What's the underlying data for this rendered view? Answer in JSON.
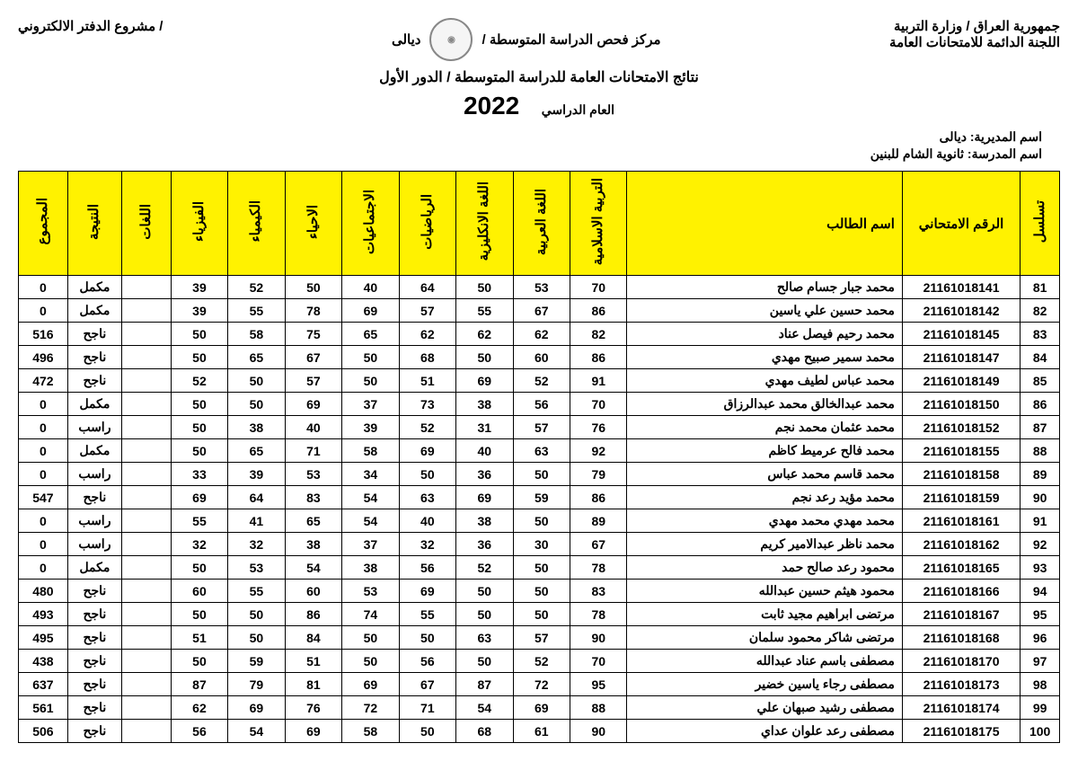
{
  "header": {
    "right1": "جمهورية العراق / وزارة التربية",
    "right2": "اللجنة الدائمة للامتحانات العامة",
    "center_label": "مركز فحص الدراسة المتوسطة  /",
    "center_gov": "ديالى",
    "left": "/ مشروع الدفتر الالكتروني",
    "title": "نتائج الامتحانات العامة للدراسة المتوسطة / الدور الأول",
    "year_label": "العام الدراسي",
    "year": "2022",
    "dir_label": "اسم المديرية:",
    "dir_value": "ديالى",
    "school_label": "اسم المدرسة:",
    "school_value": "ثانوية الشام للبنين"
  },
  "columns": {
    "seq": "تسلسل",
    "exam_no": "الرقم الامتحاني",
    "name": "اسم الطالب",
    "islamic": "التربية الاسلامية",
    "arabic": "اللغة العربية",
    "english": "اللغة الانكليزية",
    "math": "الرياضيات",
    "social": "الاجتماعيات",
    "bio": "الاحياء",
    "chem": "الكيمياء",
    "phys": "الفيزياء",
    "lang": "اللغات",
    "result": "النتيجة",
    "total": "المجموع"
  },
  "rows": [
    {
      "seq": "81",
      "exam": "21161018141",
      "name": "محمد جبار جسام صالح",
      "islamic": "70",
      "arabic": "53",
      "english": "50",
      "math": "64",
      "social": "40",
      "bio": "50",
      "chem": "52",
      "phys": "39",
      "lang": "",
      "result": "مكمل",
      "total": "0"
    },
    {
      "seq": "82",
      "exam": "21161018142",
      "name": "محمد حسين علي ياسين",
      "islamic": "86",
      "arabic": "67",
      "english": "55",
      "math": "57",
      "social": "69",
      "bio": "78",
      "chem": "55",
      "phys": "39",
      "lang": "",
      "result": "مكمل",
      "total": "0"
    },
    {
      "seq": "83",
      "exam": "21161018145",
      "name": "محمد رحيم فيصل عناد",
      "islamic": "82",
      "arabic": "62",
      "english": "62",
      "math": "62",
      "social": "65",
      "bio": "75",
      "chem": "58",
      "phys": "50",
      "lang": "",
      "result": "ناجح",
      "total": "516"
    },
    {
      "seq": "84",
      "exam": "21161018147",
      "name": "محمد سمير صبيح مهدي",
      "islamic": "86",
      "arabic": "60",
      "english": "50",
      "math": "68",
      "social": "50",
      "bio": "67",
      "chem": "65",
      "phys": "50",
      "lang": "",
      "result": "ناجح",
      "total": "496"
    },
    {
      "seq": "85",
      "exam": "21161018149",
      "name": "محمد عباس لطيف مهدي",
      "islamic": "91",
      "arabic": "52",
      "english": "69",
      "math": "51",
      "social": "50",
      "bio": "57",
      "chem": "50",
      "phys": "52",
      "lang": "",
      "result": "ناجح",
      "total": "472"
    },
    {
      "seq": "86",
      "exam": "21161018150",
      "name": "محمد عبدالخالق محمد عبدالرزاق",
      "islamic": "70",
      "arabic": "56",
      "english": "38",
      "math": "73",
      "social": "37",
      "bio": "69",
      "chem": "50",
      "phys": "50",
      "lang": "",
      "result": "مكمل",
      "total": "0"
    },
    {
      "seq": "87",
      "exam": "21161018152",
      "name": "محمد عثمان محمد نجم",
      "islamic": "76",
      "arabic": "57",
      "english": "31",
      "math": "52",
      "social": "39",
      "bio": "40",
      "chem": "38",
      "phys": "50",
      "lang": "",
      "result": "راسب",
      "total": "0"
    },
    {
      "seq": "88",
      "exam": "21161018155",
      "name": "محمد فالح عرميط كاظم",
      "islamic": "92",
      "arabic": "63",
      "english": "40",
      "math": "69",
      "social": "58",
      "bio": "71",
      "chem": "65",
      "phys": "50",
      "lang": "",
      "result": "مكمل",
      "total": "0"
    },
    {
      "seq": "89",
      "exam": "21161018158",
      "name": "محمد قاسم محمد عباس",
      "islamic": "79",
      "arabic": "50",
      "english": "36",
      "math": "50",
      "social": "34",
      "bio": "53",
      "chem": "39",
      "phys": "33",
      "lang": "",
      "result": "راسب",
      "total": "0"
    },
    {
      "seq": "90",
      "exam": "21161018159",
      "name": "محمد مؤيد رعد نجم",
      "islamic": "86",
      "arabic": "59",
      "english": "69",
      "math": "63",
      "social": "54",
      "bio": "83",
      "chem": "64",
      "phys": "69",
      "lang": "",
      "result": "ناجح",
      "total": "547"
    },
    {
      "seq": "91",
      "exam": "21161018161",
      "name": "محمد مهدي محمد مهدي",
      "islamic": "89",
      "arabic": "50",
      "english": "38",
      "math": "40",
      "social": "54",
      "bio": "65",
      "chem": "41",
      "phys": "55",
      "lang": "",
      "result": "راسب",
      "total": "0"
    },
    {
      "seq": "92",
      "exam": "21161018162",
      "name": "محمد ناظر عبدالامير كريم",
      "islamic": "67",
      "arabic": "30",
      "english": "36",
      "math": "32",
      "social": "37",
      "bio": "38",
      "chem": "32",
      "phys": "32",
      "lang": "",
      "result": "راسب",
      "total": "0"
    },
    {
      "seq": "93",
      "exam": "21161018165",
      "name": "محمود رعد صالح حمد",
      "islamic": "78",
      "arabic": "50",
      "english": "52",
      "math": "56",
      "social": "38",
      "bio": "54",
      "chem": "53",
      "phys": "50",
      "lang": "",
      "result": "مكمل",
      "total": "0"
    },
    {
      "seq": "94",
      "exam": "21161018166",
      "name": "محمود هيثم حسين عبدالله",
      "islamic": "83",
      "arabic": "50",
      "english": "50",
      "math": "69",
      "social": "53",
      "bio": "60",
      "chem": "55",
      "phys": "60",
      "lang": "",
      "result": "ناجح",
      "total": "480"
    },
    {
      "seq": "95",
      "exam": "21161018167",
      "name": "مرتضى ابراهيم مجيد ثابت",
      "islamic": "78",
      "arabic": "50",
      "english": "50",
      "math": "55",
      "social": "74",
      "bio": "86",
      "chem": "50",
      "phys": "50",
      "lang": "",
      "result": "ناجح",
      "total": "493"
    },
    {
      "seq": "96",
      "exam": "21161018168",
      "name": "مرتضى شاكر محمود سلمان",
      "islamic": "90",
      "arabic": "57",
      "english": "63",
      "math": "50",
      "social": "50",
      "bio": "84",
      "chem": "50",
      "phys": "51",
      "lang": "",
      "result": "ناجح",
      "total": "495"
    },
    {
      "seq": "97",
      "exam": "21161018170",
      "name": "مصطفى باسم عناد عبدالله",
      "islamic": "70",
      "arabic": "52",
      "english": "50",
      "math": "56",
      "social": "50",
      "bio": "51",
      "chem": "59",
      "phys": "50",
      "lang": "",
      "result": "ناجح",
      "total": "438"
    },
    {
      "seq": "98",
      "exam": "21161018173",
      "name": "مصطفى رجاء ياسين خضير",
      "islamic": "95",
      "arabic": "72",
      "english": "87",
      "math": "67",
      "social": "69",
      "bio": "81",
      "chem": "79",
      "phys": "87",
      "lang": "",
      "result": "ناجح",
      "total": "637"
    },
    {
      "seq": "99",
      "exam": "21161018174",
      "name": "مصطفى رشيد صبهان علي",
      "islamic": "88",
      "arabic": "69",
      "english": "54",
      "math": "71",
      "social": "72",
      "bio": "76",
      "chem": "69",
      "phys": "62",
      "lang": "",
      "result": "ناجح",
      "total": "561"
    },
    {
      "seq": "100",
      "exam": "21161018175",
      "name": "مصطفى رعد علوان عداي",
      "islamic": "90",
      "arabic": "61",
      "english": "68",
      "math": "50",
      "social": "58",
      "bio": "69",
      "chem": "54",
      "phys": "56",
      "lang": "",
      "result": "ناجح",
      "total": "506"
    }
  ]
}
